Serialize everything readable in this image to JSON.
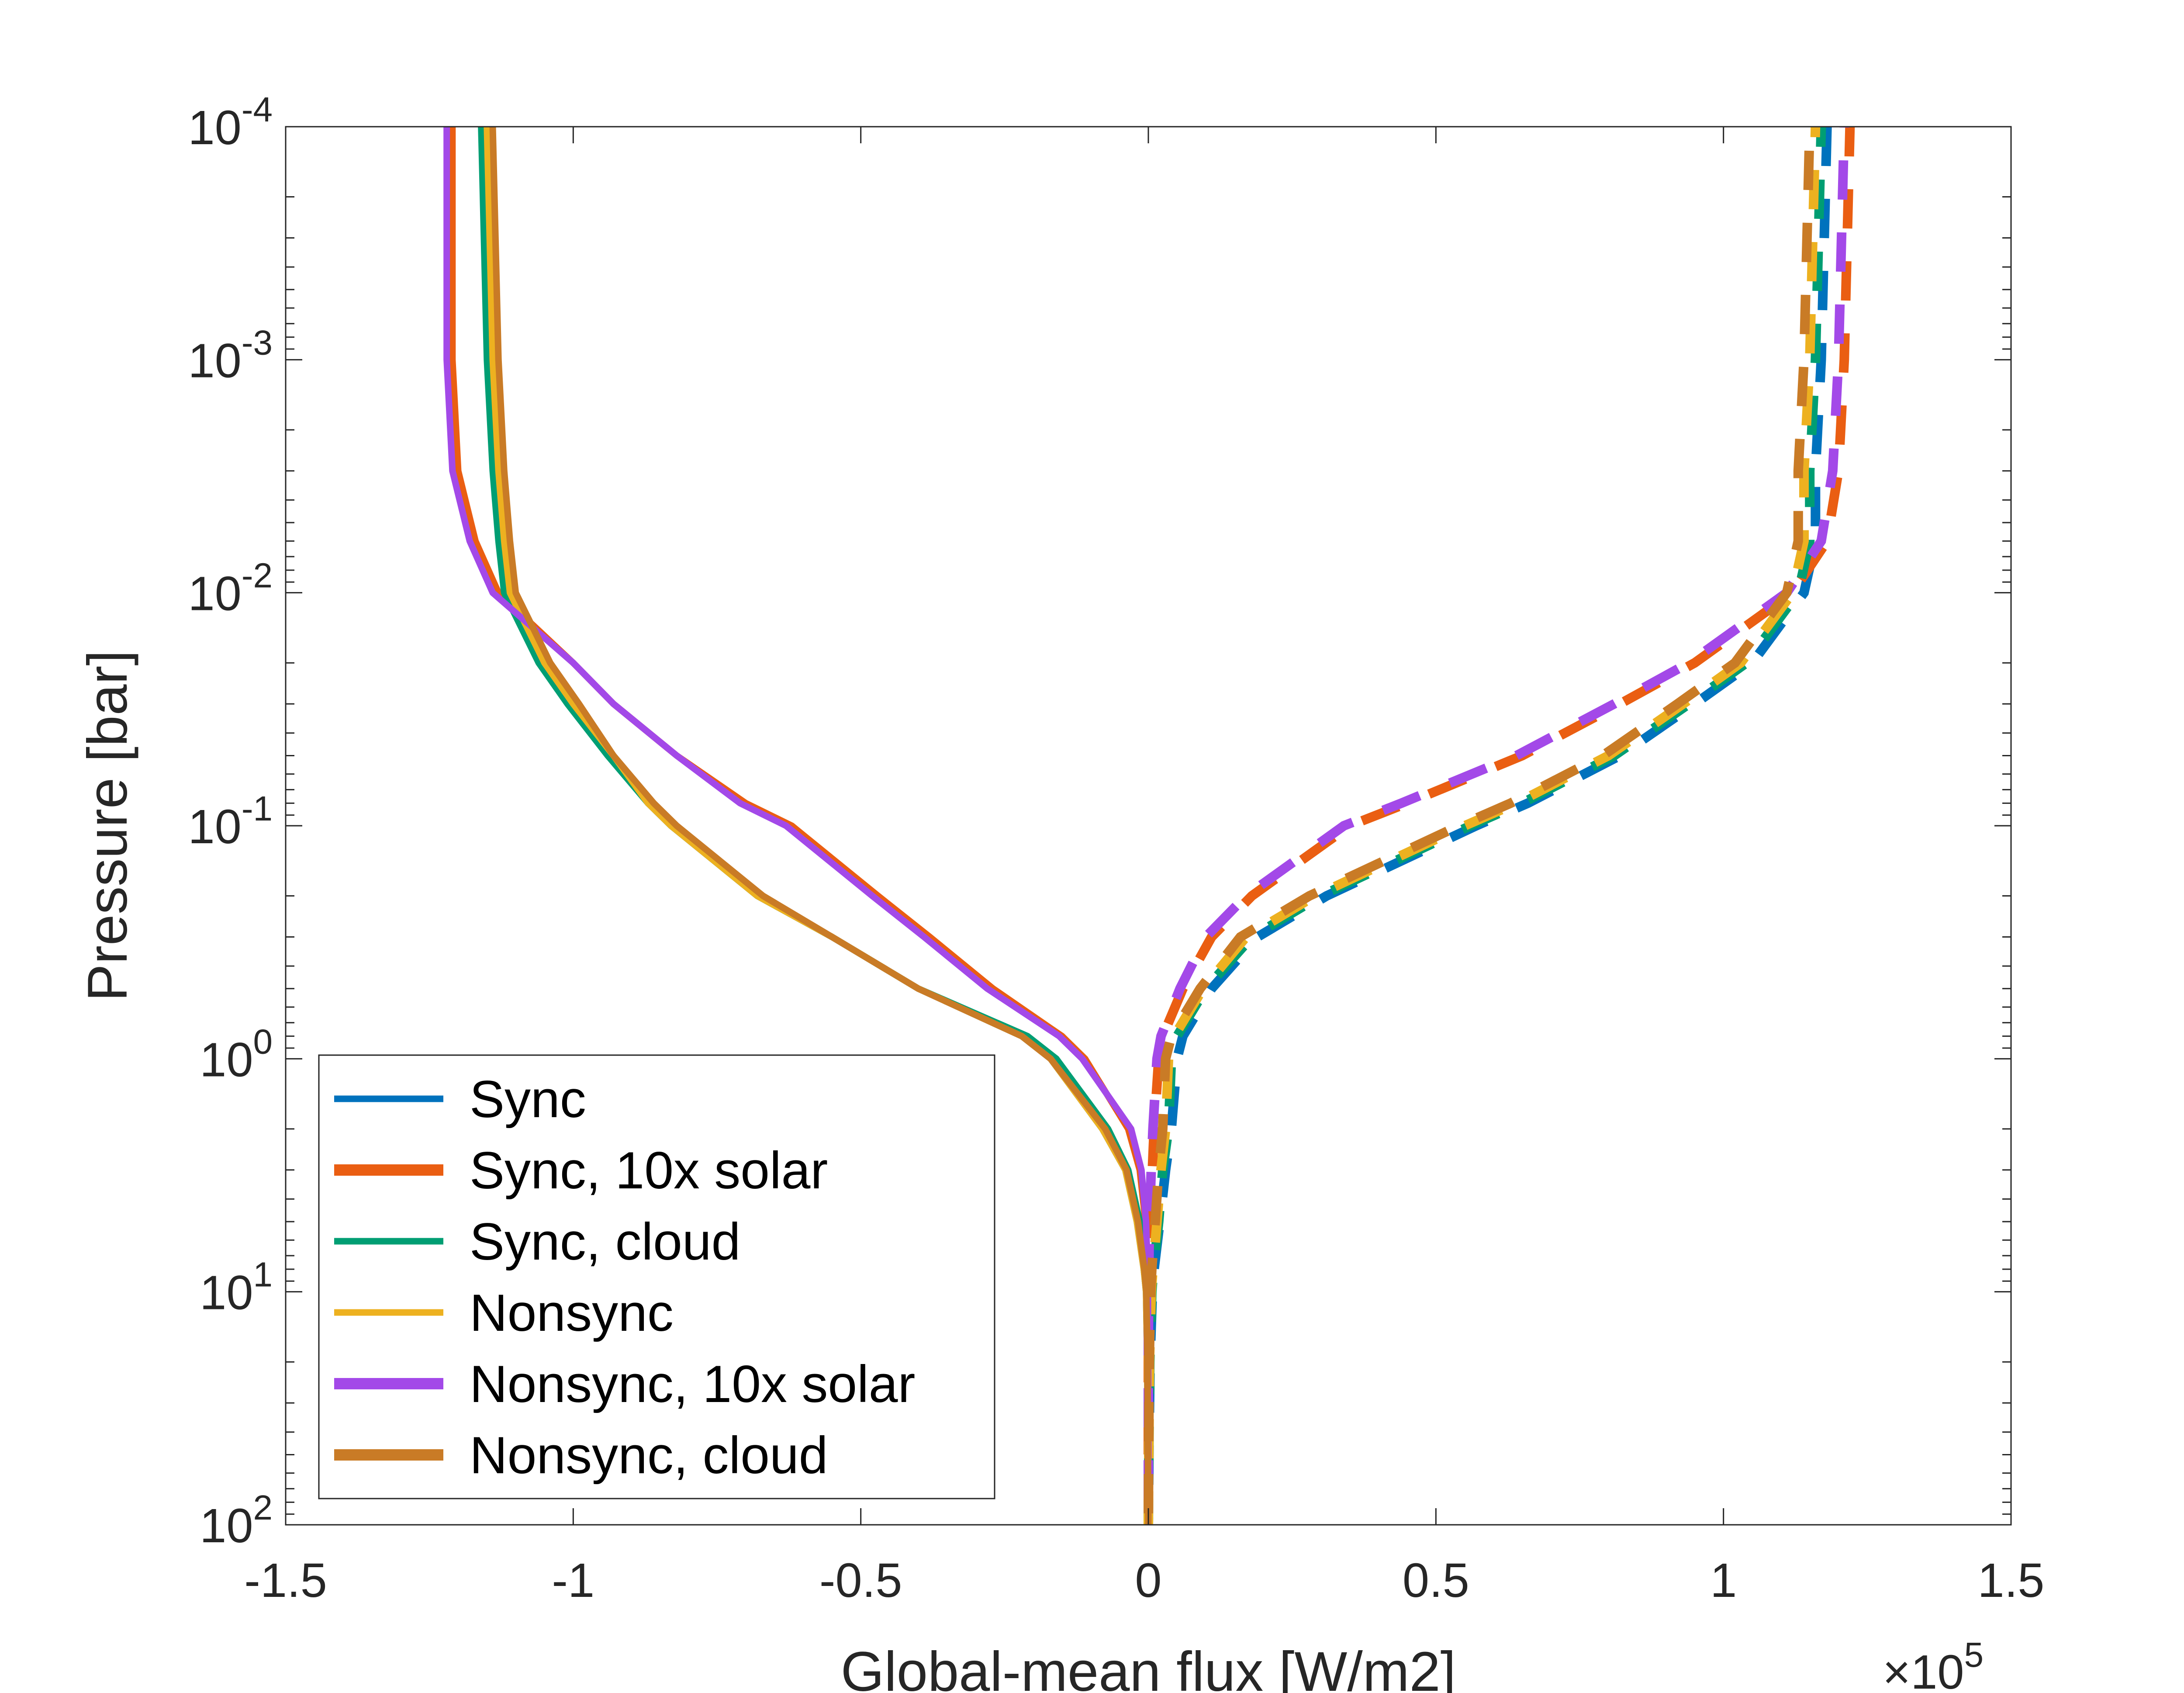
{
  "chart_data": {
    "type": "line",
    "title": "",
    "xlabel": "Global-mean flux [W/m2]",
    "ylabel": "Pressure [bar]",
    "x_multiplier": "×10",
    "x_multiplier_exponent": "5",
    "xlim": [
      -150000,
      150000
    ],
    "ylim": [
      0.0001,
      100
    ],
    "yscale": "log",
    "grid": false,
    "legend_position": "bottom-left",
    "xticks": [
      {
        "value": -150000,
        "label": "-1.5"
      },
      {
        "value": -100000,
        "label": "-1"
      },
      {
        "value": -50000,
        "label": "-0.5"
      },
      {
        "value": 0,
        "label": "0"
      },
      {
        "value": 50000,
        "label": "0.5"
      },
      {
        "value": 100000,
        "label": "1"
      },
      {
        "value": 150000,
        "label": "1.5"
      }
    ],
    "yticks": [
      {
        "value": 0.0001,
        "base": "10",
        "exp": "-4"
      },
      {
        "value": 0.001,
        "base": "10",
        "exp": "-3"
      },
      {
        "value": 0.01,
        "base": "10",
        "exp": "-2"
      },
      {
        "value": 0.1,
        "base": "10",
        "exp": "-1"
      },
      {
        "value": 1,
        "base": "10",
        "exp": "0"
      },
      {
        "value": 10,
        "base": "10",
        "exp": "1"
      },
      {
        "value": 100,
        "base": "10",
        "exp": "2"
      }
    ],
    "pressure": [
      0.0001,
      0.001,
      0.003,
      0.006,
      0.01,
      0.02,
      0.03,
      0.05,
      0.08,
      0.1,
      0.2,
      0.3,
      0.5,
      0.8,
      1,
      2,
      3,
      5,
      8,
      10,
      20,
      50,
      100
    ],
    "series": [
      {
        "name": "Sync",
        "color": "#0072BD",
        "downward": [
          -115000,
          -114000,
          -113000,
          -112000,
          -111000,
          -105000,
          -100000,
          -93000,
          -87000,
          -83000,
          -68000,
          -55000,
          -40000,
          -22000,
          -17000,
          -8000,
          -4000,
          -2000,
          -800,
          -400,
          -200,
          -100,
          0
        ],
        "upward": [
          118000,
          117000,
          116000,
          116000,
          114000,
          105000,
          95000,
          82000,
          66000,
          57000,
          31000,
          19000,
          11000,
          6000,
          5000,
          4000,
          3000,
          2000,
          1000,
          700,
          300,
          100,
          0
        ]
      },
      {
        "name": "Sync, 10x solar",
        "color": "#EA5E12",
        "downward": [
          -121000,
          -121000,
          -120000,
          -117000,
          -113000,
          -100000,
          -93000,
          -82000,
          -70000,
          -62000,
          -47000,
          -38000,
          -27000,
          -15000,
          -11000,
          -3500,
          -1500,
          -500,
          -200,
          -100,
          -50,
          0,
          0
        ],
        "upward": [
          122000,
          121000,
          120000,
          118000,
          112000,
          95000,
          82000,
          65000,
          45000,
          35000,
          18000,
          11000,
          6000,
          2500,
          1800,
          1000,
          700,
          300,
          100,
          50,
          0,
          0,
          0
        ]
      },
      {
        "name": "Sync, cloud",
        "color": "#009E73",
        "downward": [
          -116000,
          -115000,
          -114000,
          -113000,
          -112000,
          -106000,
          -101000,
          -94000,
          -87000,
          -83000,
          -68000,
          -55000,
          -40000,
          -21000,
          -16000,
          -7000,
          -3500,
          -1500,
          -700,
          -350,
          -150,
          -80,
          0
        ],
        "upward": [
          117000,
          116000,
          115000,
          115000,
          113000,
          104000,
          94000,
          81000,
          65000,
          56000,
          30000,
          18000,
          10000,
          5000,
          4000,
          3500,
          2500,
          1800,
          900,
          600,
          250,
          80,
          0
        ]
      },
      {
        "name": "Nonsync",
        "color": "#EDB120",
        "downward": [
          -115000,
          -114000,
          -113000,
          -112000,
          -111000,
          -105000,
          -100000,
          -93000,
          -87000,
          -83000,
          -68000,
          -55000,
          -40000,
          -22000,
          -17000,
          -8000,
          -4000,
          -2000,
          -800,
          -400,
          -200,
          -100,
          0
        ],
        "upward": [
          116000,
          115000,
          114000,
          114000,
          112000,
          103000,
          93000,
          80000,
          64000,
          55000,
          29000,
          17000,
          9500,
          4500,
          3500,
          3000,
          2200,
          1500,
          800,
          500,
          200,
          80,
          0
        ]
      },
      {
        "name": "Nonsync, 10x solar",
        "color": "#A349E8",
        "downward": [
          -122000,
          -122000,
          -121000,
          -118000,
          -114000,
          -100000,
          -93000,
          -82000,
          -71000,
          -63000,
          -48000,
          -39000,
          -28000,
          -15500,
          -11500,
          -3000,
          -1200,
          -400,
          -150,
          -80,
          -40,
          0,
          0
        ],
        "upward": [
          121000,
          120000,
          119000,
          117000,
          111000,
          94000,
          81000,
          64000,
          44000,
          34000,
          17000,
          10000,
          5500,
          2200,
          1500,
          800,
          500,
          200,
          80,
          40,
          0,
          0,
          0
        ]
      },
      {
        "name": "Nonsync, cloud",
        "color": "#C97B26",
        "downward": [
          -114000,
          -113000,
          -112000,
          -111000,
          -110000,
          -104000,
          -99000,
          -93000,
          -86000,
          -82000,
          -67000,
          -55000,
          -40000,
          -22000,
          -17000,
          -7500,
          -3800,
          -1800,
          -700,
          -350,
          -150,
          -80,
          0
        ],
        "upward": [
          115000,
          114000,
          113000,
          113000,
          111000,
          102000,
          92000,
          79000,
          63000,
          54000,
          28000,
          16000,
          9000,
          4000,
          3000,
          2500,
          1800,
          1200,
          600,
          400,
          150,
          50,
          0
        ]
      }
    ]
  }
}
